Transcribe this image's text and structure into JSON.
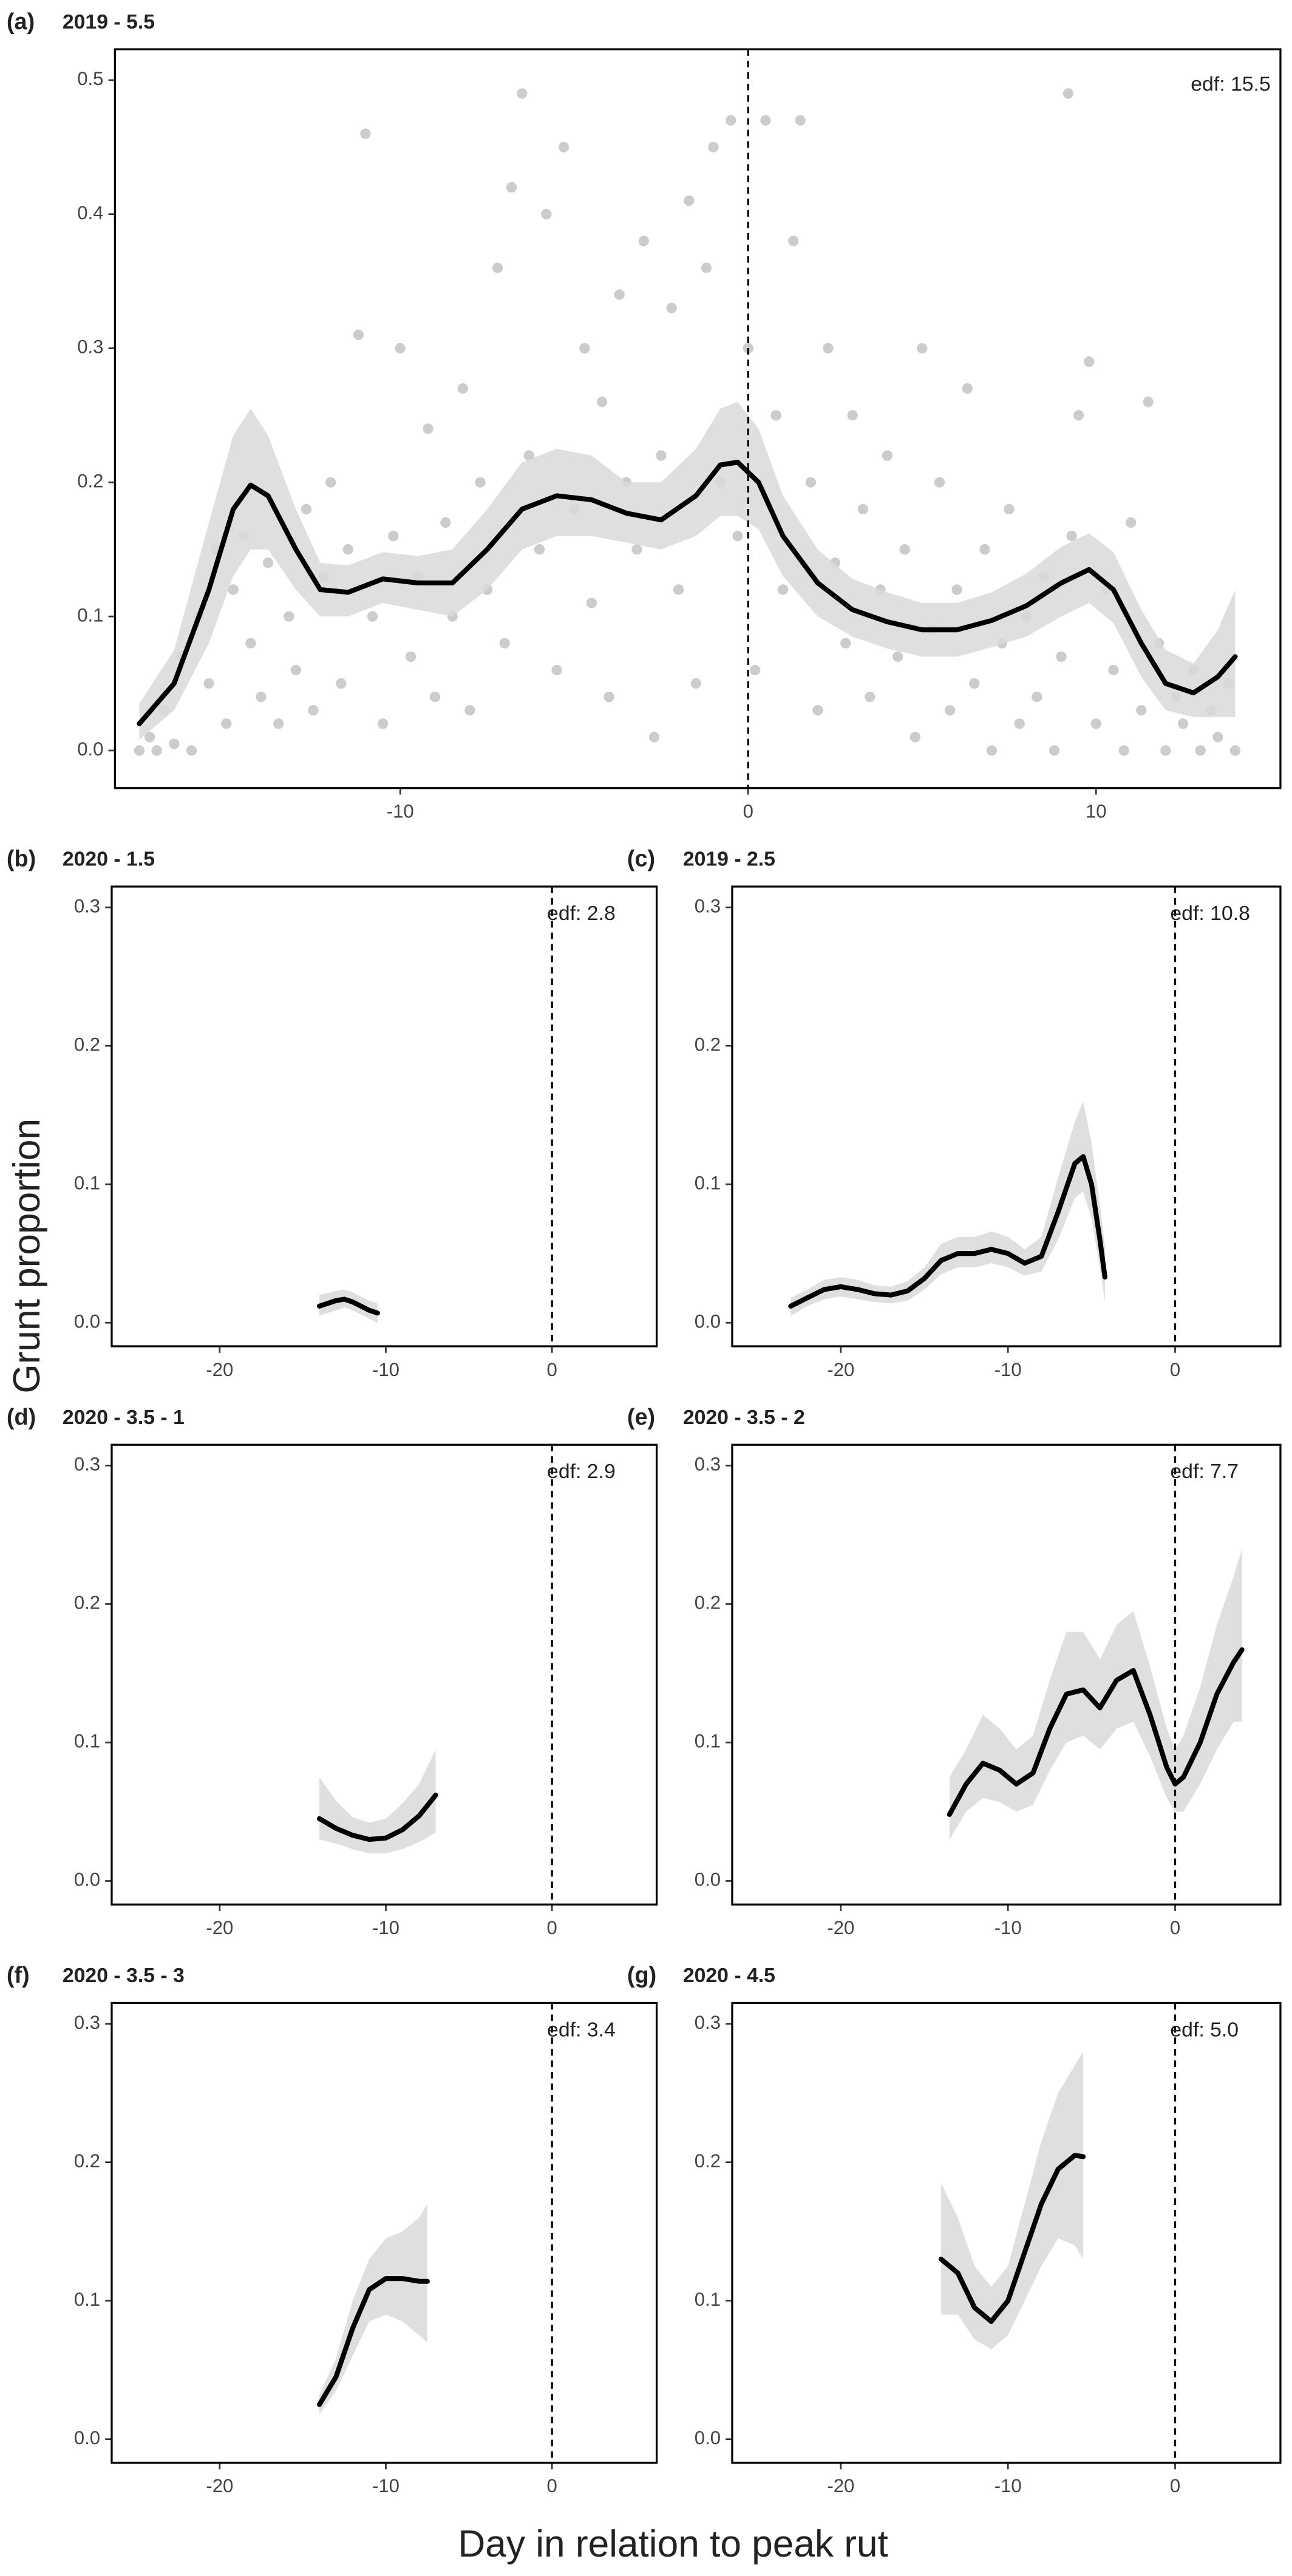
{
  "y_label": "Grunt proportion",
  "x_label": "Day in relation to peak rut",
  "chart_data": [
    {
      "type": "line",
      "panel_label": "(a)",
      "title": "2019 - 5.5",
      "annotation": "edf: 15.5",
      "color": "#000000",
      "band_color": "#d9d9d9",
      "point_color": "#cccccc",
      "vline": 0,
      "xlim": [
        -18.2,
        15.3
      ],
      "ylim": [
        -0.028,
        0.523
      ],
      "xticks": [
        -10,
        0,
        10
      ],
      "yticks": [
        {
          "value": 0,
          "label": "0.0"
        },
        0.1,
        0.2,
        0.3,
        0.4,
        0.5
      ],
      "x": [
        -17.5,
        -16.5,
        -15.5,
        -14.8,
        -14.3,
        -13.8,
        -13,
        -12.3,
        -11.5,
        -10.5,
        -9.5,
        -8.5,
        -7.5,
        -6.5,
        -5.5,
        -4.5,
        -3.5,
        -2.5,
        -1.5,
        -0.8,
        -0.3,
        0.3,
        1,
        2,
        3,
        4,
        5,
        6,
        7,
        8,
        9,
        9.8,
        10.5,
        11.3,
        12,
        12.8,
        13.5,
        14
      ],
      "values": [
        0.02,
        0.05,
        0.12,
        0.18,
        0.198,
        0.19,
        0.15,
        0.12,
        0.118,
        0.128,
        0.125,
        0.125,
        0.15,
        0.18,
        0.19,
        0.187,
        0.177,
        0.172,
        0.19,
        0.213,
        0.215,
        0.2,
        0.16,
        0.125,
        0.105,
        0.096,
        0.09,
        0.09,
        0.097,
        0.108,
        0.125,
        0.135,
        0.12,
        0.08,
        0.05,
        0.043,
        0.055,
        0.07
      ],
      "ci_lower": [
        0.008,
        0.03,
        0.08,
        0.13,
        0.15,
        0.15,
        0.12,
        0.1,
        0.1,
        0.11,
        0.105,
        0.1,
        0.12,
        0.15,
        0.16,
        0.16,
        0.155,
        0.15,
        0.16,
        0.175,
        0.175,
        0.165,
        0.13,
        0.1,
        0.085,
        0.076,
        0.07,
        0.07,
        0.077,
        0.085,
        0.1,
        0.11,
        0.095,
        0.055,
        0.03,
        0.025,
        0.025,
        0.025
      ],
      "ci_upper": [
        0.035,
        0.075,
        0.17,
        0.235,
        0.255,
        0.235,
        0.18,
        0.14,
        0.138,
        0.148,
        0.145,
        0.15,
        0.18,
        0.215,
        0.225,
        0.22,
        0.2,
        0.2,
        0.225,
        0.255,
        0.26,
        0.24,
        0.19,
        0.15,
        0.128,
        0.118,
        0.11,
        0.11,
        0.118,
        0.132,
        0.152,
        0.162,
        0.148,
        0.105,
        0.075,
        0.065,
        0.09,
        0.12
      ],
      "points": {
        "x": [
          -17.5,
          -17.2,
          -17,
          -16.8,
          -16.5,
          -16.3,
          -16,
          -15.8,
          -15.5,
          -15.3,
          -15,
          -14.8,
          -14.5,
          -14.3,
          -14,
          -13.8,
          -13.5,
          -13.2,
          -13,
          -12.7,
          -12.5,
          -12.2,
          -12,
          -11.7,
          -11.5,
          -11.2,
          -11,
          -10.8,
          -10.5,
          -10.2,
          -10,
          -9.7,
          -9.5,
          -9.2,
          -9,
          -8.7,
          -8.5,
          -8.2,
          -8,
          -7.7,
          -7.5,
          -7.2,
          -7,
          -6.8,
          -6.5,
          -6.3,
          -6,
          -5.8,
          -5.5,
          -5.3,
          -5,
          -4.7,
          -4.5,
          -4.2,
          -4,
          -3.7,
          -3.5,
          -3.2,
          -3,
          -2.7,
          -2.5,
          -2.2,
          -2,
          -1.7,
          -1.5,
          -1.2,
          -1,
          -0.8,
          -0.5,
          -0.3,
          0,
          0.2,
          0.5,
          0.8,
          1,
          1.3,
          1.5,
          1.8,
          2,
          2.3,
          2.5,
          2.8,
          3,
          3.3,
          3.5,
          3.8,
          4,
          4.3,
          4.5,
          4.8,
          5,
          5.3,
          5.5,
          5.8,
          6,
          6.3,
          6.5,
          6.8,
          7,
          7.3,
          7.5,
          7.8,
          8,
          8.3,
          8.5,
          8.8,
          9,
          9.3,
          9.5,
          9.8,
          10,
          10.3,
          10.5,
          10.8,
          11,
          11.3,
          11.5,
          11.8,
          12,
          12.3,
          12.5,
          12.8,
          13,
          13.3,
          13.5,
          13.8,
          14,
          9.2
        ],
        "y": [
          0,
          0.01,
          0,
          0.03,
          0.005,
          0.07,
          0,
          0.1,
          0.05,
          0.15,
          0.02,
          0.12,
          0.16,
          0.08,
          0.04,
          0.14,
          0.02,
          0.1,
          0.06,
          0.18,
          0.03,
          0.13,
          0.2,
          0.05,
          0.15,
          0.31,
          0.46,
          0.1,
          0.02,
          0.16,
          0.3,
          0.07,
          0.13,
          0.24,
          0.04,
          0.17,
          0.1,
          0.27,
          0.03,
          0.2,
          0.12,
          0.36,
          0.08,
          0.42,
          0.49,
          0.22,
          0.15,
          0.4,
          0.06,
          0.45,
          0.18,
          0.3,
          0.11,
          0.26,
          0.04,
          0.34,
          0.2,
          0.15,
          0.38,
          0.01,
          0.22,
          0.33,
          0.12,
          0.41,
          0.05,
          0.36,
          0.45,
          0.2,
          0.47,
          0.16,
          0.3,
          0.06,
          0.47,
          0.25,
          0.12,
          0.38,
          0.47,
          0.2,
          0.03,
          0.3,
          0.14,
          0.08,
          0.25,
          0.18,
          0.04,
          0.12,
          0.22,
          0.07,
          0.15,
          0.01,
          0.3,
          0.09,
          0.2,
          0.03,
          0.12,
          0.27,
          0.05,
          0.15,
          0,
          0.08,
          0.18,
          0.02,
          0.1,
          0.04,
          0.13,
          0,
          0.07,
          0.16,
          0.25,
          0.29,
          0.02,
          0.12,
          0.06,
          0,
          0.17,
          0.03,
          0.26,
          0.08,
          0,
          0.04,
          0.02,
          0.06,
          0,
          0.03,
          0.01,
          0.05,
          0,
          0.49
        ]
      }
    },
    {
      "type": "line",
      "panel_label": "(b)",
      "title": "2020 - 1.5",
      "annotation": "edf: 2.8",
      "color": "#000000",
      "band_color": "#d9d9d9",
      "vline": 0,
      "xlim": [
        -26.5,
        6.3
      ],
      "ylim": [
        -0.017,
        0.315
      ],
      "xticks": [
        -20,
        -10,
        0
      ],
      "yticks": [
        {
          "value": 0,
          "label": "0.0"
        },
        0.1,
        0.2,
        0.3
      ],
      "x": [
        -14,
        -13,
        -12.5,
        -12,
        -11,
        -10.5
      ],
      "values": [
        0.012,
        0.016,
        0.017,
        0.015,
        0.009,
        0.007
      ],
      "ci_lower": [
        0.005,
        0.009,
        0.011,
        0.009,
        0.003,
        0
      ],
      "ci_upper": [
        0.02,
        0.023,
        0.024,
        0.022,
        0.016,
        0.014
      ]
    },
    {
      "type": "line",
      "panel_label": "(c)",
      "title": "2019 - 2.5",
      "annotation": "edf: 10.8",
      "color": "#000000",
      "band_color": "#d9d9d9",
      "vline": 0,
      "xlim": [
        -26.5,
        6.3
      ],
      "ylim": [
        -0.017,
        0.315
      ],
      "xticks": [
        -20,
        -10,
        0
      ],
      "yticks": [
        {
          "value": 0,
          "label": "0.0"
        },
        0.1,
        0.2,
        0.3
      ],
      "x": [
        -23,
        -22,
        -21,
        -20,
        -19,
        -18,
        -17,
        -16,
        -15,
        -14,
        -13,
        -12,
        -11,
        -10,
        -9,
        -8,
        -7,
        -6,
        -5.5,
        -5,
        -4.5,
        -4.2
      ],
      "values": [
        0.012,
        0.018,
        0.024,
        0.026,
        0.024,
        0.021,
        0.02,
        0.023,
        0.032,
        0.045,
        0.05,
        0.05,
        0.053,
        0.05,
        0.043,
        0.048,
        0.08,
        0.115,
        0.12,
        0.1,
        0.06,
        0.033
      ],
      "ci_lower": [
        0.005,
        0.012,
        0.017,
        0.019,
        0.017,
        0.015,
        0.014,
        0.016,
        0.024,
        0.035,
        0.04,
        0.04,
        0.043,
        0.04,
        0.034,
        0.037,
        0.06,
        0.09,
        0.095,
        0.075,
        0.04,
        0.015
      ],
      "ci_upper": [
        0.018,
        0.024,
        0.031,
        0.033,
        0.031,
        0.027,
        0.026,
        0.03,
        0.04,
        0.057,
        0.062,
        0.062,
        0.066,
        0.062,
        0.053,
        0.062,
        0.105,
        0.145,
        0.16,
        0.13,
        0.085,
        0.055
      ]
    },
    {
      "type": "line",
      "panel_label": "(d)",
      "title": "2020 - 3.5 - 1",
      "annotation": "edf: 2.9",
      "color": "#000000",
      "band_color": "#d9d9d9",
      "vline": 0,
      "xlim": [
        -26.5,
        6.3
      ],
      "ylim": [
        -0.017,
        0.315
      ],
      "xticks": [
        -20,
        -10,
        0
      ],
      "yticks": [
        {
          "value": 0,
          "label": "0.0"
        },
        0.1,
        0.2,
        0.3
      ],
      "x": [
        -14,
        -13,
        -12,
        -11,
        -10,
        -9,
        -8,
        -7
      ],
      "values": [
        0.045,
        0.038,
        0.033,
        0.03,
        0.031,
        0.037,
        0.047,
        0.062
      ],
      "ci_lower": [
        0.03,
        0.027,
        0.023,
        0.02,
        0.02,
        0.023,
        0.028,
        0.035
      ],
      "ci_upper": [
        0.075,
        0.058,
        0.046,
        0.042,
        0.045,
        0.056,
        0.07,
        0.095
      ]
    },
    {
      "type": "line",
      "panel_label": "(e)",
      "title": "2020 - 3.5 - 2",
      "annotation": "edf: 7.7",
      "color": "#000000",
      "band_color": "#d9d9d9",
      "vline": 0,
      "xlim": [
        -26.5,
        6.3
      ],
      "ylim": [
        -0.017,
        0.315
      ],
      "xticks": [
        -20,
        -10,
        0
      ],
      "yticks": [
        {
          "value": 0,
          "label": "0.0"
        },
        0.1,
        0.2,
        0.3
      ],
      "x": [
        -13.5,
        -12.5,
        -11.5,
        -10.5,
        -9.5,
        -8.5,
        -7.5,
        -6.5,
        -5.5,
        -4.5,
        -3.5,
        -2.5,
        -1.5,
        -0.5,
        0,
        0.5,
        1.5,
        2.5,
        3.5,
        4
      ],
      "values": [
        0.048,
        0.07,
        0.085,
        0.08,
        0.07,
        0.078,
        0.11,
        0.135,
        0.138,
        0.125,
        0.145,
        0.152,
        0.12,
        0.082,
        0.07,
        0.075,
        0.1,
        0.135,
        0.158,
        0.167
      ],
      "ci_lower": [
        0.03,
        0.05,
        0.06,
        0.057,
        0.05,
        0.055,
        0.08,
        0.1,
        0.105,
        0.095,
        0.11,
        0.115,
        0.09,
        0.06,
        0.05,
        0.05,
        0.07,
        0.095,
        0.115,
        0.115
      ],
      "ci_upper": [
        0.075,
        0.095,
        0.12,
        0.11,
        0.095,
        0.105,
        0.145,
        0.18,
        0.18,
        0.16,
        0.185,
        0.195,
        0.155,
        0.11,
        0.095,
        0.105,
        0.14,
        0.185,
        0.22,
        0.24
      ]
    },
    {
      "type": "line",
      "panel_label": "(f)",
      "title": "2020 - 3.5 - 3",
      "annotation": "edf: 3.4",
      "color": "#000000",
      "band_color": "#d9d9d9",
      "vline": 0,
      "xlim": [
        -26.5,
        6.3
      ],
      "ylim": [
        -0.017,
        0.315
      ],
      "xticks": [
        -20,
        -10,
        0
      ],
      "yticks": [
        {
          "value": 0,
          "label": "0.0"
        },
        0.1,
        0.2,
        0.3
      ],
      "x": [
        -14,
        -13,
        -12,
        -11,
        -10,
        -9,
        -8,
        -7.5
      ],
      "values": [
        0.025,
        0.045,
        0.08,
        0.108,
        0.116,
        0.116,
        0.114,
        0.114
      ],
      "ci_lower": [
        0.018,
        0.035,
        0.06,
        0.085,
        0.09,
        0.085,
        0.075,
        0.07
      ],
      "ci_upper": [
        0.032,
        0.058,
        0.1,
        0.13,
        0.145,
        0.15,
        0.16,
        0.17
      ]
    },
    {
      "type": "line",
      "panel_label": "(g)",
      "title": "2020 - 4.5",
      "annotation": "edf: 5.0",
      "color": "#000000",
      "band_color": "#d9d9d9",
      "vline": 0,
      "xlim": [
        -26.5,
        6.3
      ],
      "ylim": [
        -0.017,
        0.315
      ],
      "xticks": [
        -20,
        -10,
        0
      ],
      "yticks": [
        {
          "value": 0,
          "label": "0.0"
        },
        0.1,
        0.2,
        0.3
      ],
      "x": [
        -14,
        -13,
        -12,
        -11,
        -10,
        -9,
        -8,
        -7,
        -6,
        -5.5
      ],
      "values": [
        0.13,
        0.12,
        0.095,
        0.085,
        0.1,
        0.135,
        0.17,
        0.195,
        0.205,
        0.204
      ],
      "ci_lower": [
        0.09,
        0.09,
        0.072,
        0.065,
        0.075,
        0.1,
        0.125,
        0.145,
        0.14,
        0.13
      ],
      "ci_upper": [
        0.185,
        0.16,
        0.125,
        0.11,
        0.125,
        0.17,
        0.215,
        0.25,
        0.27,
        0.28
      ]
    }
  ]
}
